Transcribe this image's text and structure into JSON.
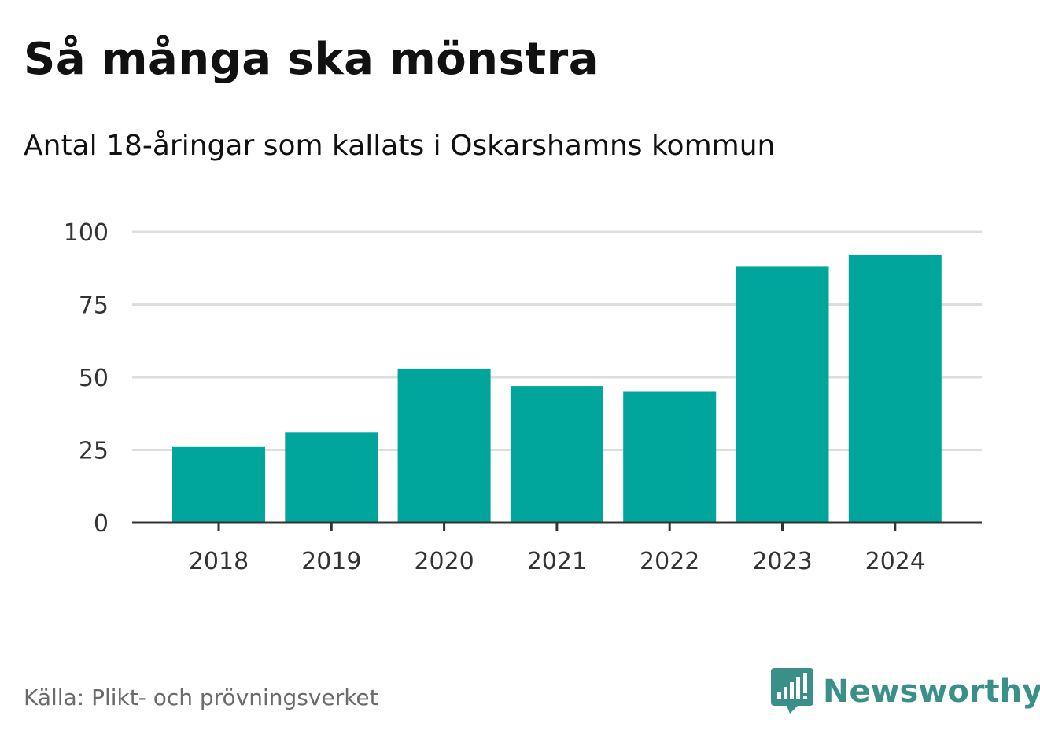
{
  "header": {
    "title": "Så många ska mönstra",
    "subtitle": "Antal 18-åringar som kallats i Oskarshamns kommun"
  },
  "footer": {
    "source": "Källa: Plikt- och prövningsverket",
    "brand": "Newsworthy",
    "brand_icon": "bar-chart-speech-bubble-icon"
  },
  "colors": {
    "bar": "#00a59b",
    "brand": "#3a9088",
    "grid": "#dddddd",
    "axis": "#333333"
  },
  "chart_data": {
    "type": "bar",
    "title": "Så många ska mönstra",
    "subtitle": "Antal 18-åringar som kallats i Oskarshamns kommun",
    "xlabel": "",
    "ylabel": "",
    "categories": [
      "2018",
      "2019",
      "2020",
      "2021",
      "2022",
      "2023",
      "2024"
    ],
    "values": [
      26,
      31,
      53,
      47,
      45,
      88,
      92
    ],
    "ylim": [
      0,
      100
    ],
    "yticks": [
      0,
      25,
      50,
      75,
      100
    ],
    "grid": true,
    "legend": "none"
  }
}
